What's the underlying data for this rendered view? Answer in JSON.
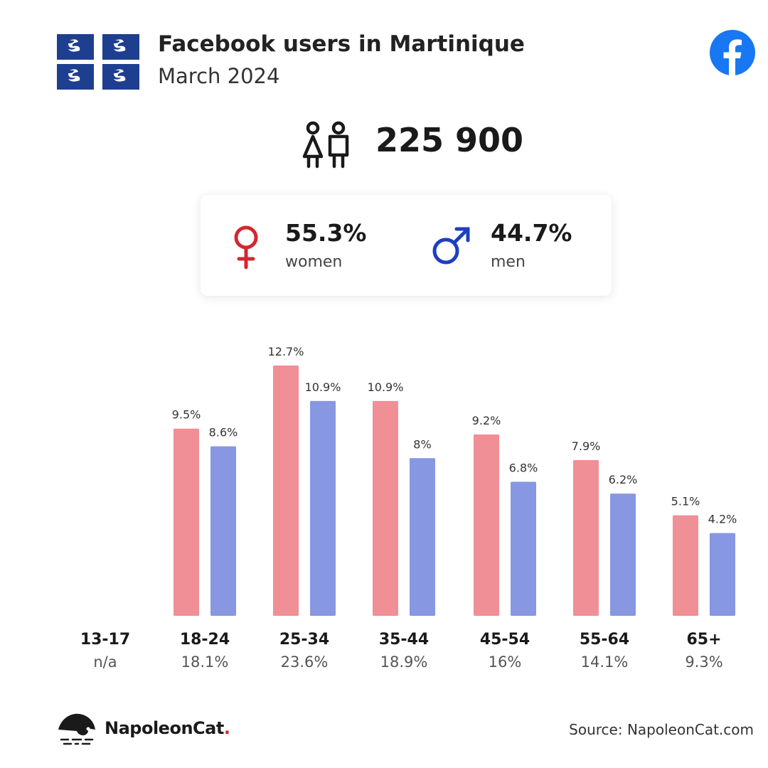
{
  "header": {
    "title": "Facebook users in Martinique",
    "subtitle": "March 2024"
  },
  "total": {
    "value": "225 900"
  },
  "gender": {
    "women": {
      "pct": "55.3%",
      "label": "women",
      "color": "#d6262f"
    },
    "men": {
      "pct": "44.7%",
      "label": "men",
      "color": "#1f3fbf"
    }
  },
  "chart_data": {
    "type": "bar",
    "categories": [
      "13-17",
      "18-24",
      "25-34",
      "35-44",
      "45-54",
      "55-64",
      "65+"
    ],
    "category_totals": [
      "n/a",
      "18.1%",
      "23.6%",
      "18.9%",
      "16%",
      "14.1%",
      "9.3%"
    ],
    "series": [
      {
        "key": "women",
        "color": "#f08f95",
        "values": [
          null,
          9.5,
          12.7,
          10.9,
          9.2,
          7.9,
          5.1
        ],
        "labels": [
          "",
          "9.5%",
          "12.7%",
          "10.9%",
          "9.2%",
          "7.9%",
          "5.1%"
        ]
      },
      {
        "key": "men",
        "color": "#8797e2",
        "values": [
          null,
          8.6,
          10.9,
          8,
          6.8,
          6.2,
          4.2
        ],
        "labels": [
          "",
          "8.6%",
          "10.9%",
          "8%",
          "6.8%",
          "6.2%",
          "4.2%"
        ]
      }
    ],
    "ylim": [
      0,
      12.7
    ],
    "grid": false,
    "legend": "none"
  },
  "footer": {
    "brand": "NapoleonCat",
    "brand_dot": ".",
    "source": "Source: NapoleonCat.com"
  },
  "icons": {
    "flag": "martinique-flag-icon",
    "facebook": "facebook-logo-icon",
    "people": "people-icon",
    "female": "female-symbol-icon",
    "male": "male-symbol-icon",
    "brand": "napoleoncat-logo-icon"
  }
}
